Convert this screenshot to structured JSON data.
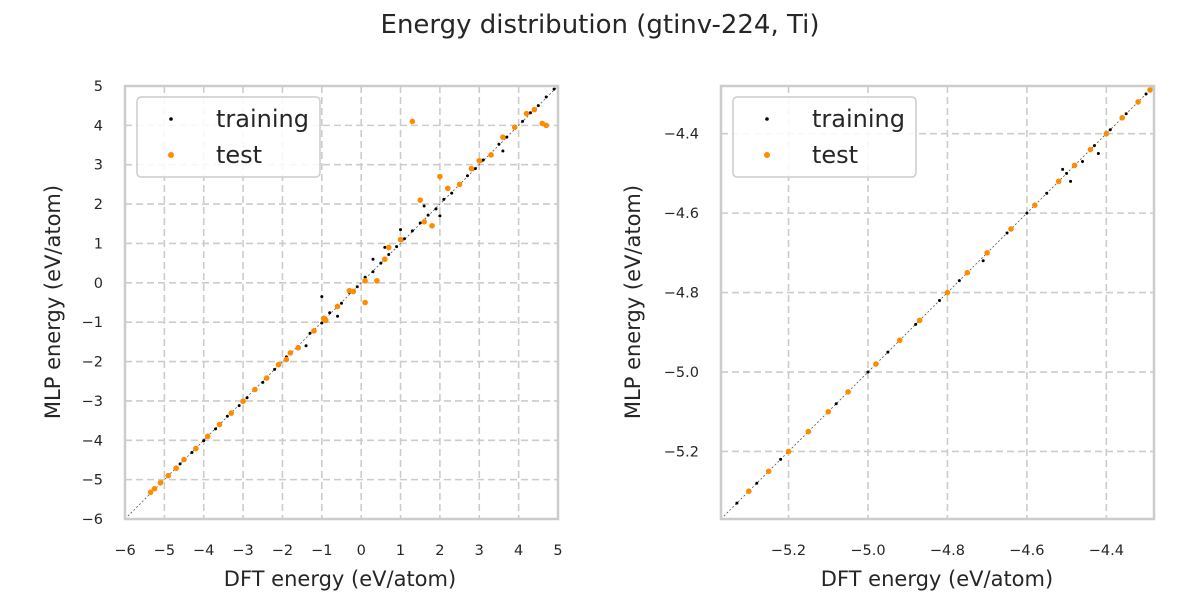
{
  "title": "Energy distribution (gtinv-224, Ti)",
  "colors": {
    "training": "#000000",
    "test": "#ff8c00",
    "grid": "#cccccc",
    "spine": "#cccccc"
  },
  "chart_data": [
    {
      "type": "scatter",
      "xlabel": "DFT energy (eV/atom)",
      "ylabel": "MLP energy (eV/atom)",
      "xlim": [
        -6,
        5
      ],
      "ylim": [
        -6,
        5
      ],
      "xticks": [
        -6,
        -5,
        -4,
        -3,
        -2,
        -1,
        0,
        1,
        2,
        3,
        4,
        5
      ],
      "yticks": [
        -6,
        -5,
        -4,
        -3,
        -2,
        -1,
        0,
        1,
        2,
        3,
        4,
        5
      ],
      "xtick_labels": [
        "−6",
        "−5",
        "−4",
        "−3",
        "−2",
        "−1",
        "0",
        "1",
        "2",
        "3",
        "4",
        "5"
      ],
      "ytick_labels": [
        "−6",
        "−5",
        "−4",
        "−3",
        "−2",
        "−1",
        "0",
        "1",
        "2",
        "3",
        "4",
        "5"
      ],
      "grid": true,
      "legend_position": "upper-left",
      "series": [
        {
          "name": "training",
          "color": "#000000",
          "points": [
            [
              -5.35,
              -5.33
            ],
            [
              -5.25,
              -5.22
            ],
            [
              -5.1,
              -5.1
            ],
            [
              -4.9,
              -4.89
            ],
            [
              -4.6,
              -4.6
            ],
            [
              -4.3,
              -4.31
            ],
            [
              -4.0,
              -4.01
            ],
            [
              -3.7,
              -3.71
            ],
            [
              -3.4,
              -3.39
            ],
            [
              -3.1,
              -3.12
            ],
            [
              -2.9,
              -2.92
            ],
            [
              -2.5,
              -2.53
            ],
            [
              -2.2,
              -2.2
            ],
            [
              -1.9,
              -1.88
            ],
            [
              -1.6,
              -1.62
            ],
            [
              -1.3,
              -1.28
            ],
            [
              -1.0,
              -1.02
            ],
            [
              -0.8,
              -0.76
            ],
            [
              -0.5,
              -0.52
            ],
            [
              -0.3,
              -0.25
            ],
            [
              -0.1,
              -0.1
            ],
            [
              0.1,
              0.14
            ],
            [
              0.3,
              0.28
            ],
            [
              0.5,
              0.5
            ],
            [
              0.7,
              0.72
            ],
            [
              0.9,
              0.92
            ],
            [
              1.1,
              1.12
            ],
            [
              1.3,
              1.32
            ],
            [
              1.5,
              1.52
            ],
            [
              1.7,
              1.72
            ],
            [
              1.9,
              1.88
            ],
            [
              2.1,
              2.12
            ],
            [
              2.3,
              2.28
            ],
            [
              2.5,
              2.5
            ],
            [
              2.7,
              2.72
            ],
            [
              2.9,
              2.9
            ],
            [
              3.1,
              3.12
            ],
            [
              3.3,
              3.28
            ],
            [
              3.5,
              3.52
            ],
            [
              3.7,
              3.7
            ],
            [
              3.9,
              3.92
            ],
            [
              4.1,
              4.1
            ],
            [
              4.3,
              4.32
            ],
            [
              4.5,
              4.5
            ],
            [
              4.7,
              4.72
            ],
            [
              4.9,
              4.92
            ],
            [
              -1.0,
              -0.35
            ],
            [
              0.3,
              0.6
            ],
            [
              1.0,
              1.35
            ],
            [
              2.0,
              1.7
            ],
            [
              -0.6,
              -0.85
            ],
            [
              3.6,
              3.35
            ],
            [
              1.6,
              1.95
            ],
            [
              0.6,
              0.9
            ],
            [
              -1.4,
              -1.6
            ]
          ]
        },
        {
          "name": "test",
          "color": "#ff8c00",
          "points": [
            [
              -5.35,
              -5.32
            ],
            [
              -5.25,
              -5.23
            ],
            [
              -5.1,
              -5.08
            ],
            [
              -4.9,
              -4.9
            ],
            [
              -4.7,
              -4.71
            ],
            [
              -4.5,
              -4.49
            ],
            [
              -4.2,
              -4.21
            ],
            [
              -3.9,
              -3.9
            ],
            [
              -3.6,
              -3.6
            ],
            [
              -3.3,
              -3.31
            ],
            [
              -3.0,
              -3.01
            ],
            [
              -2.7,
              -2.71
            ],
            [
              -2.4,
              -2.42
            ],
            [
              -2.1,
              -2.08
            ],
            [
              -1.8,
              -1.78
            ],
            [
              -1.6,
              -1.65
            ],
            [
              -1.2,
              -1.22
            ],
            [
              -0.9,
              -0.95
            ],
            [
              -0.6,
              -0.6
            ],
            [
              -0.2,
              -0.22
            ],
            [
              0.1,
              0.05
            ],
            [
              0.4,
              0.05
            ],
            [
              0.1,
              -0.5
            ],
            [
              0.7,
              0.9
            ],
            [
              1.0,
              1.1
            ],
            [
              1.3,
              4.1
            ],
            [
              1.5,
              2.1
            ],
            [
              1.8,
              1.45
            ],
            [
              2.0,
              2.7
            ],
            [
              2.2,
              2.4
            ],
            [
              2.5,
              2.5
            ],
            [
              2.8,
              2.9
            ],
            [
              3.0,
              3.1
            ],
            [
              3.3,
              3.25
            ],
            [
              3.6,
              3.7
            ],
            [
              3.9,
              3.95
            ],
            [
              4.2,
              4.3
            ],
            [
              4.4,
              4.4
            ],
            [
              4.6,
              4.05
            ],
            [
              4.7,
              4.0
            ],
            [
              -0.3,
              -0.2
            ],
            [
              -0.95,
              -0.9
            ],
            [
              1.6,
              1.55
            ],
            [
              0.6,
              0.6
            ],
            [
              -1.9,
              -1.95
            ]
          ]
        }
      ]
    },
    {
      "type": "scatter",
      "xlabel": "DFT energy (eV/atom)",
      "ylabel": "MLP energy (eV/atom)",
      "xlim": [
        -5.37,
        -4.28
      ],
      "ylim": [
        -5.37,
        -4.28
      ],
      "xticks": [
        -5.2,
        -5.0,
        -4.8,
        -4.6,
        -4.4
      ],
      "yticks": [
        -5.2,
        -5.0,
        -4.8,
        -4.6,
        -4.4
      ],
      "xtick_labels": [
        "−5.2",
        "−5.0",
        "−4.8",
        "−4.6",
        "−4.4"
      ],
      "ytick_labels": [
        "−5.2",
        "−5.0",
        "−4.8",
        "−4.6",
        "−4.4"
      ],
      "grid": true,
      "legend_position": "upper-left",
      "series": [
        {
          "name": "training",
          "color": "#000000",
          "points": [
            [
              -5.33,
              -5.33
            ],
            [
              -5.28,
              -5.28
            ],
            [
              -5.22,
              -5.22
            ],
            [
              -5.15,
              -5.15
            ],
            [
              -5.08,
              -5.08
            ],
            [
              -5.0,
              -5.0
            ],
            [
              -4.95,
              -4.95
            ],
            [
              -4.88,
              -4.88
            ],
            [
              -4.82,
              -4.82
            ],
            [
              -4.77,
              -4.77
            ],
            [
              -4.71,
              -4.72
            ],
            [
              -4.65,
              -4.65
            ],
            [
              -4.6,
              -4.6
            ],
            [
              -4.55,
              -4.55
            ],
            [
              -4.5,
              -4.5
            ],
            [
              -4.46,
              -4.47
            ],
            [
              -4.43,
              -4.43
            ],
            [
              -4.39,
              -4.39
            ],
            [
              -4.35,
              -4.35
            ],
            [
              -4.3,
              -4.3
            ],
            [
              -4.51,
              -4.49
            ],
            [
              -4.49,
              -4.52
            ],
            [
              -4.42,
              -4.45
            ]
          ]
        },
        {
          "name": "test",
          "color": "#ff8c00",
          "points": [
            [
              -5.3,
              -5.3
            ],
            [
              -5.25,
              -5.25
            ],
            [
              -5.2,
              -5.2
            ],
            [
              -5.15,
              -5.15
            ],
            [
              -5.1,
              -5.1
            ],
            [
              -5.05,
              -5.05
            ],
            [
              -4.98,
              -4.98
            ],
            [
              -4.92,
              -4.92
            ],
            [
              -4.87,
              -4.87
            ],
            [
              -4.8,
              -4.8
            ],
            [
              -4.75,
              -4.75
            ],
            [
              -4.7,
              -4.7
            ],
            [
              -4.64,
              -4.64
            ],
            [
              -4.58,
              -4.58
            ],
            [
              -4.52,
              -4.52
            ],
            [
              -4.48,
              -4.48
            ],
            [
              -4.44,
              -4.44
            ],
            [
              -4.4,
              -4.4
            ],
            [
              -4.36,
              -4.36
            ],
            [
              -4.32,
              -4.32
            ],
            [
              -4.29,
              -4.29
            ]
          ]
        }
      ]
    }
  ]
}
